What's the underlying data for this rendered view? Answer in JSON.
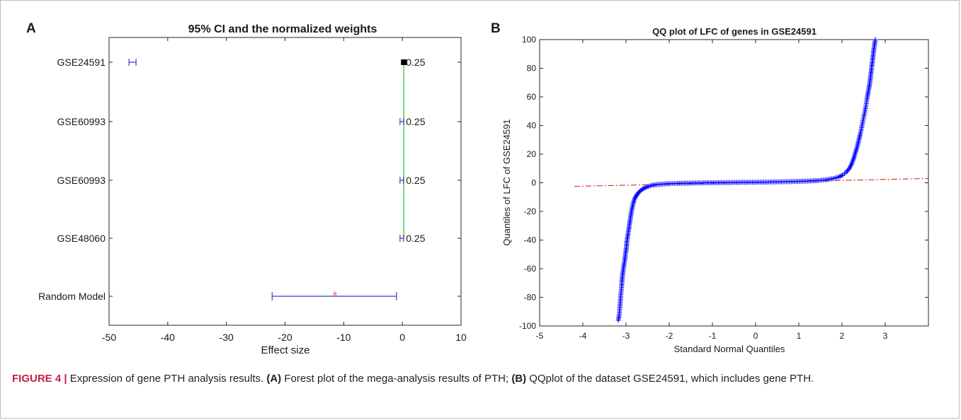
{
  "colors": {
    "ci": "#3b3bd6",
    "ci_end": "#c0399a",
    "weight_line": "#22cc22",
    "weight_square": "#000000",
    "pooled": "#ff6b6b",
    "qq_points": "#0000ff",
    "ref_line": "#e8221c",
    "axis": "#262626",
    "caption_head": "#c21f47"
  },
  "panel_a": {
    "letter": "A",
    "title": "95% CI and the normalized weights",
    "xlabel": "Effect size",
    "xticks": [
      "-50",
      "-40",
      "-30",
      "-20",
      "-10",
      "0",
      "10"
    ],
    "row_labels": [
      "GSE24591",
      "GSE60993",
      "GSE60993",
      "GSE48060",
      "Random Model"
    ],
    "weight_labels": [
      "0.25",
      "0.25",
      "0.25",
      "0.25"
    ]
  },
  "panel_b": {
    "letter": "B",
    "title": "QQ plot of LFC of genes in GSE24591",
    "xlabel": "Standard Normal Quantiles",
    "ylabel": "Quantiles of LFC of GSE24591",
    "xticks": [
      "-5",
      "-4",
      "-3",
      "-2",
      "-1",
      "0",
      "1",
      "2",
      "3"
    ],
    "yticks": [
      "100",
      "80",
      "60",
      "40",
      "20",
      "0",
      "-20",
      "-40",
      "-60",
      "-80",
      "-100"
    ]
  },
  "chart_data": [
    {
      "type": "forest",
      "title": "95% CI and the normalized weights",
      "xlabel": "Effect size",
      "ylabel": "",
      "xlim": [
        -50,
        10
      ],
      "studies": [
        {
          "label": "GSE24591",
          "estimate": -46,
          "ci": [
            -46.6,
            -45.4
          ],
          "weight": 0.25
        },
        {
          "label": "GSE60993",
          "estimate": -0.1,
          "ci": [
            -0.4,
            0.2
          ],
          "weight": 0.25
        },
        {
          "label": "GSE60993",
          "estimate": -0.1,
          "ci": [
            -0.4,
            0.2
          ],
          "weight": 0.25
        },
        {
          "label": "GSE48060",
          "estimate": -0.1,
          "ci": [
            -0.4,
            0.2
          ],
          "weight": 0.25
        }
      ],
      "pooled": {
        "label": "Random Model",
        "estimate": -11.5,
        "ci": [
          -22.2,
          -1.0
        ]
      },
      "weight_axis": {
        "x": 0.25,
        "square_y": 0.25
      }
    },
    {
      "type": "scatter",
      "marker": "+",
      "title": "QQ plot of LFC of genes in GSE24591",
      "xlabel": "Standard Normal Quantiles",
      "ylabel": "Quantiles of LFC of GSE24591",
      "xlim": [
        -5,
        4
      ],
      "ylim": [
        -100,
        100
      ],
      "points": [
        [
          -3.18,
          -96
        ],
        [
          -3.16,
          -93
        ],
        [
          -3.14,
          -86
        ],
        [
          -3.12,
          -78
        ],
        [
          -3.1,
          -72
        ],
        [
          -3.09,
          -67
        ],
        [
          -3.07,
          -62
        ],
        [
          -3.05,
          -58
        ],
        [
          -3.03,
          -54
        ],
        [
          -3.01,
          -49
        ],
        [
          -2.99,
          -45
        ],
        [
          -2.98,
          -41
        ],
        [
          -2.96,
          -37
        ],
        [
          -2.94,
          -33
        ],
        [
          -2.92,
          -29
        ],
        [
          -2.9,
          -25
        ],
        [
          -2.88,
          -21
        ],
        [
          -2.86,
          -18
        ],
        [
          -2.84,
          -15
        ],
        [
          -2.82,
          -13
        ],
        [
          -2.8,
          -11
        ],
        [
          -2.77,
          -9.5
        ],
        [
          -2.74,
          -8
        ],
        [
          -2.7,
          -6.5
        ],
        [
          -2.65,
          -5.2
        ],
        [
          -2.6,
          -4.1
        ],
        [
          -2.54,
          -3.2
        ],
        [
          -2.48,
          -2.5
        ],
        [
          -2.4,
          -1.8
        ],
        [
          -2.3,
          -1.3
        ],
        [
          -2.15,
          -0.9
        ],
        [
          -2.0,
          -0.6
        ],
        [
          -1.8,
          -0.4
        ],
        [
          -1.5,
          -0.2
        ],
        [
          -1.2,
          0
        ],
        [
          -0.9,
          0.1
        ],
        [
          -0.6,
          0.2
        ],
        [
          -0.3,
          0.3
        ],
        [
          0,
          0.4
        ],
        [
          0.3,
          0.5
        ],
        [
          0.6,
          0.7
        ],
        [
          0.9,
          0.9
        ],
        [
          1.2,
          1.2
        ],
        [
          1.45,
          1.6
        ],
        [
          1.65,
          2.2
        ],
        [
          1.8,
          3.0
        ],
        [
          1.92,
          4.0
        ],
        [
          2.02,
          5.5
        ],
        [
          2.1,
          7.5
        ],
        [
          2.17,
          10
        ],
        [
          2.22,
          13
        ],
        [
          2.27,
          17
        ],
        [
          2.31,
          21
        ],
        [
          2.35,
          25
        ],
        [
          2.39,
          30
        ],
        [
          2.43,
          35
        ],
        [
          2.47,
          41
        ],
        [
          2.51,
          47
        ],
        [
          2.55,
          53
        ],
        [
          2.58,
          59
        ],
        [
          2.61,
          64
        ],
        [
          2.64,
          69
        ],
        [
          2.66,
          74
        ],
        [
          2.68,
          79
        ],
        [
          2.7,
          84
        ],
        [
          2.72,
          89
        ],
        [
          2.74,
          94
        ],
        [
          2.76,
          98
        ],
        [
          2.77,
          100
        ]
      ],
      "reference_line": {
        "x": [
          -4.2,
          4.0
        ],
        "y": [
          -2.5,
          3.0
        ],
        "style": "dash-dot"
      }
    }
  ],
  "caption": {
    "label": "FIGURE 4 |",
    "text1": " Expression of gene PTH analysis results. ",
    "a_ref": "(A)",
    "text2": " Forest plot of the mega-analysis results of PTH; ",
    "b_ref": "(B)",
    "text3": " QQplot of the dataset GSE24591, which includes gene PTH."
  }
}
